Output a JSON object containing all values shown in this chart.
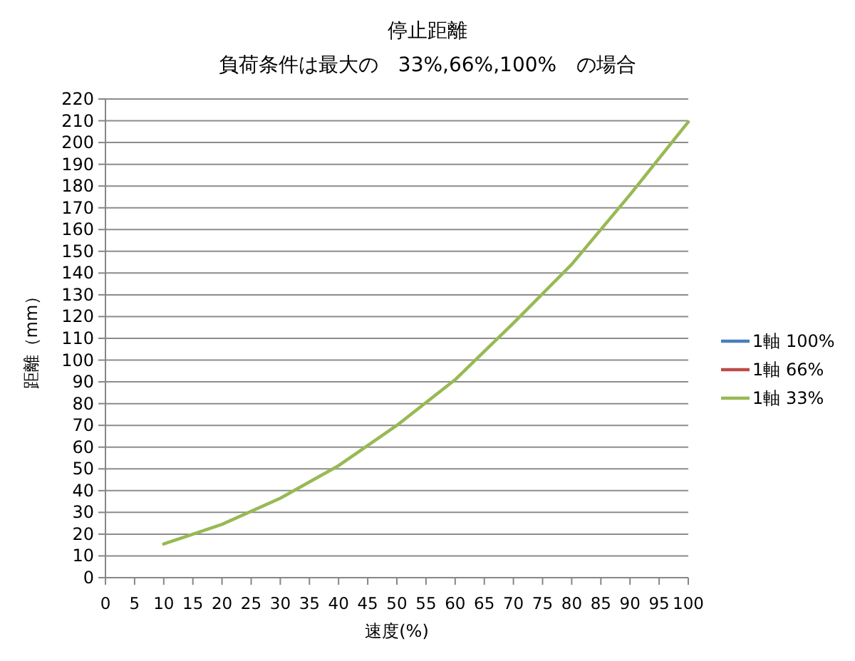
{
  "chart_data": {
    "type": "line",
    "title": "停止距離",
    "subtitle": "負荷条件は最大の　33%,66%,100%　の場合",
    "xlabel": "速度(%)",
    "ylabel": "距離（mm）",
    "x": [
      10,
      20,
      30,
      40,
      50,
      60,
      70,
      80,
      90,
      100
    ],
    "series": [
      {
        "name": "1軸 100%",
        "color": "#4a7ebb",
        "values": [
          null,
          null,
          null,
          null,
          null,
          null,
          null,
          null,
          null,
          null
        ]
      },
      {
        "name": "1軸 66%",
        "color": "#be4b48",
        "values": [
          null,
          null,
          null,
          null,
          null,
          null,
          null,
          null,
          null,
          null
        ]
      },
      {
        "name": "1軸 33%",
        "color": "#98b954",
        "values": [
          15.5,
          24.5,
          36.5,
          51.5,
          70,
          91,
          117,
          144,
          176,
          209.5
        ]
      }
    ],
    "xlim": [
      0,
      100
    ],
    "xticks": [
      0,
      5,
      10,
      15,
      20,
      25,
      30,
      35,
      40,
      45,
      50,
      55,
      60,
      65,
      70,
      75,
      80,
      85,
      90,
      95,
      100
    ],
    "ylim": [
      0,
      220
    ],
    "yticks": [
      0,
      10,
      20,
      30,
      40,
      50,
      60,
      70,
      80,
      90,
      100,
      110,
      120,
      130,
      140,
      150,
      160,
      170,
      180,
      190,
      200,
      210,
      220
    ],
    "grid": "y",
    "legend": "right"
  }
}
